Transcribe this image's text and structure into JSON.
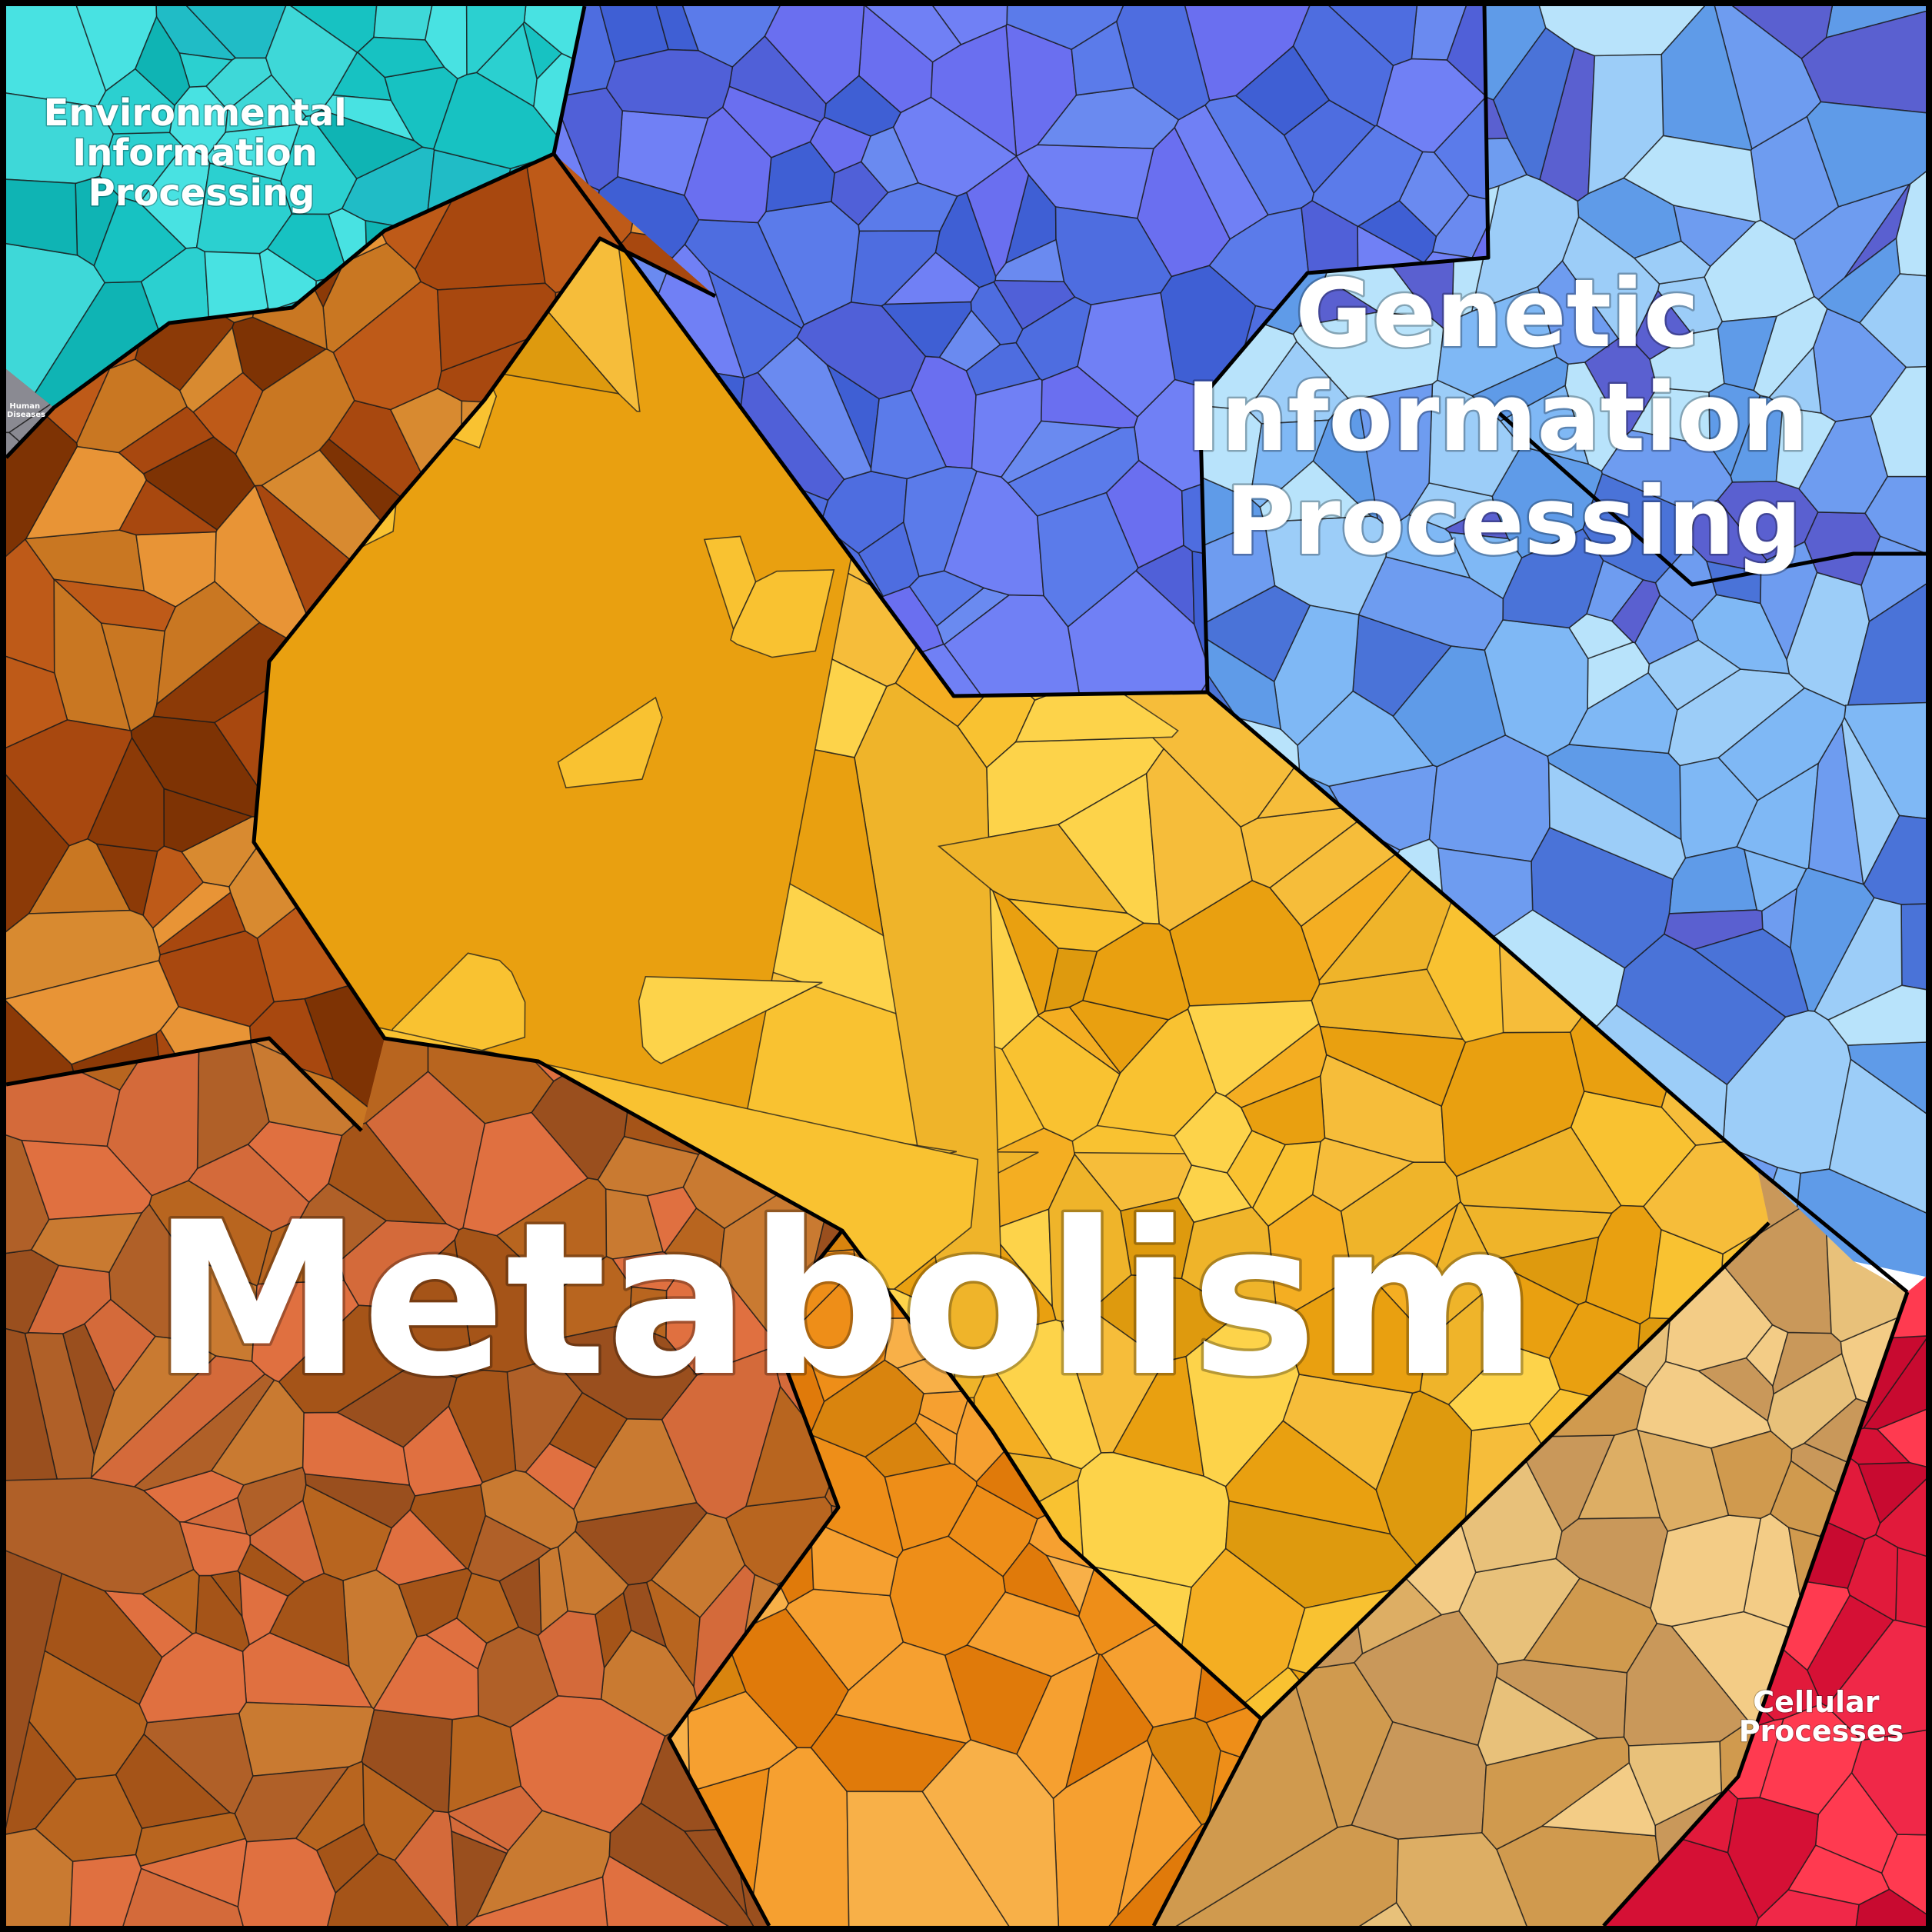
{
  "diagram": {
    "type": "voronoi-treemap",
    "categories": [
      {
        "key": "metabolism",
        "label": "Metabolism",
        "color": "#F2A81E"
      },
      {
        "key": "genetic",
        "label_lines": [
          "Genetic",
          "Information",
          "Processing"
        ],
        "color": "#4F6FE0"
      },
      {
        "key": "environmental",
        "label_lines": [
          "Environmental",
          "Information",
          "Processing"
        ],
        "color": "#1FC7C7"
      },
      {
        "key": "cellular",
        "label_lines": [
          "Cellular",
          "Processes"
        ],
        "color": "#E4193A"
      },
      {
        "key": "human_diseases",
        "label_lines": [
          "Human",
          "Diseases"
        ],
        "color": "#808080"
      }
    ]
  }
}
